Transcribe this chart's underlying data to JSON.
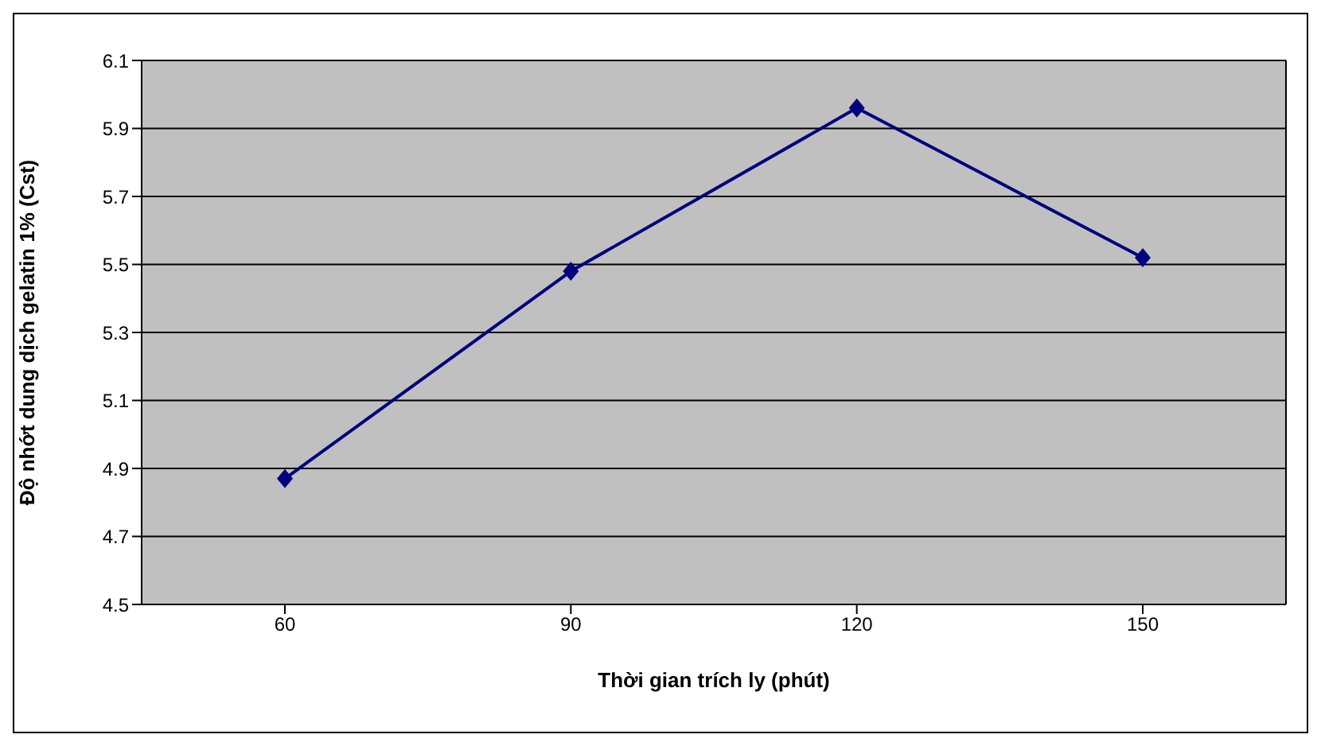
{
  "chart_data": {
    "type": "line",
    "xlabel": "Thời gian trích ly (phút)",
    "ylabel": "Độ nhớt dung dịch gelatin 1% (Cst)",
    "categories": [
      "60",
      "90",
      "120",
      "150"
    ],
    "series": [
      {
        "color": "#000080",
        "values": [
          4.87,
          5.48,
          5.96,
          5.52
        ]
      }
    ],
    "ylim": [
      4.5,
      6.1
    ],
    "yticks": [
      4.5,
      4.7,
      4.9,
      5.1,
      5.3,
      5.5,
      5.7,
      5.9,
      6.1
    ],
    "grid": "y",
    "legend": false,
    "marker": "diamond",
    "line_style": "solid"
  }
}
